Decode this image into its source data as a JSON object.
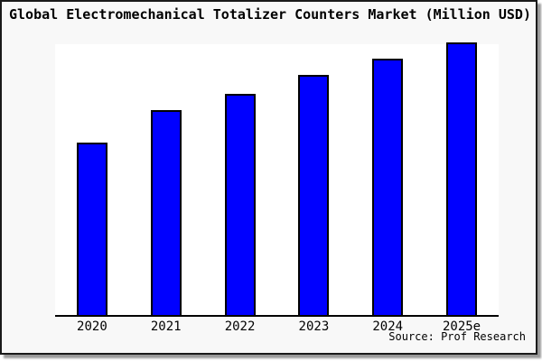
{
  "chart_data": {
    "type": "bar",
    "title": "Global Electromechanical Totalizer Counters Market (Million USD)",
    "categories": [
      "2020",
      "2021",
      "2022",
      "2023",
      "2024",
      "2025e"
    ],
    "values": [
      63,
      75,
      81,
      88,
      94,
      100
    ],
    "value_note": "No y-axis ticks or data labels are shown; values are relative bar heights measured as percent of the tallest (2025e) bar",
    "xlabel": "",
    "ylabel": "",
    "ylim": [
      0,
      100
    ],
    "grid": false,
    "legend": false,
    "source": "Source: Prof Research",
    "colors": {
      "bar_fill": "#0000FF",
      "bar_border": "#000000",
      "plot_background": "#ffffff",
      "canvas_background": "#f8f8f8",
      "frame_border": "#1a1a1a",
      "frame_shadow": "#999999",
      "text": "#000000"
    }
  }
}
